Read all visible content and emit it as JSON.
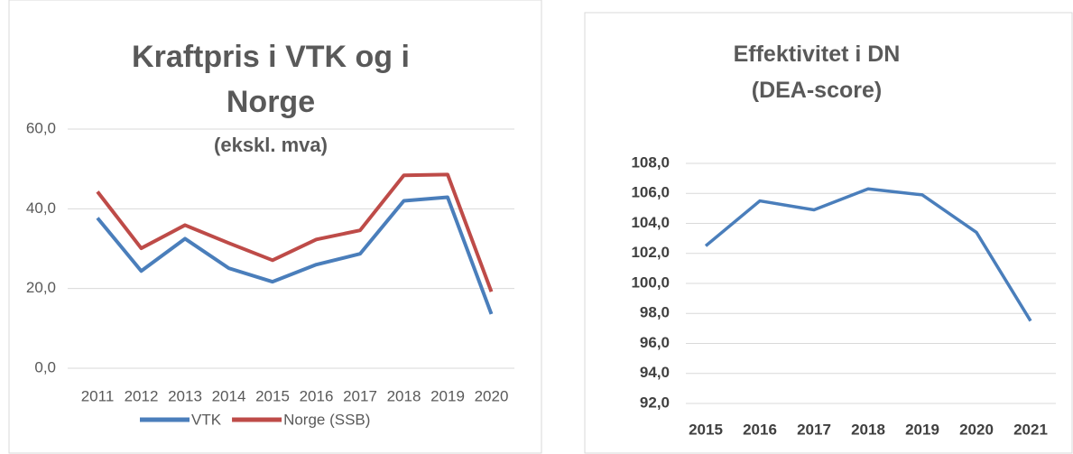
{
  "chart_data": [
    {
      "type": "line",
      "title": "Kraftpris i VTK og i Norge",
      "subtitle": "(ekskl. mva)",
      "categories": [
        "2011",
        "2012",
        "2013",
        "2014",
        "2015",
        "2016",
        "2017",
        "2018",
        "2019",
        "2020"
      ],
      "series": [
        {
          "name": "VTK",
          "color": "#4a7ebb",
          "values": [
            37.7,
            24.4,
            32.5,
            25.1,
            21.7,
            26.0,
            28.7,
            42.0,
            42.9,
            13.6
          ]
        },
        {
          "name": "Norge (SSB)",
          "color": "#be4b48",
          "values": [
            44.3,
            30.1,
            35.9,
            31.4,
            27.1,
            32.3,
            34.6,
            48.4,
            48.6,
            19.2
          ]
        }
      ],
      "ylim": [
        0,
        60
      ],
      "yticks": [
        {
          "value": 0,
          "label": "0,0"
        },
        {
          "value": 20,
          "label": "20,0"
        },
        {
          "value": 40,
          "label": "40,0"
        },
        {
          "value": 60,
          "label": "60,0"
        }
      ],
      "grid": true,
      "legend": "bottom"
    },
    {
      "type": "line",
      "title": "Effektivitet i DN",
      "subtitle": "(DEA-score)",
      "categories": [
        "2015",
        "2016",
        "2017",
        "2018",
        "2019",
        "2020",
        "2021"
      ],
      "values": [
        102.5,
        105.5,
        104.9,
        106.3,
        105.9,
        103.4,
        97.5
      ],
      "color": "#4a7ebb",
      "ylim": [
        92,
        108
      ],
      "yticks": [
        {
          "value": 92,
          "label": "92,0"
        },
        {
          "value": 94,
          "label": "94,0"
        },
        {
          "value": 96,
          "label": "96,0"
        },
        {
          "value": 98,
          "label": "98,0"
        },
        {
          "value": 100,
          "label": "100,0"
        },
        {
          "value": 102,
          "label": "102,0"
        },
        {
          "value": 104,
          "label": "104,0"
        },
        {
          "value": 106,
          "label": "106,0"
        },
        {
          "value": 108,
          "label": "108,0"
        }
      ],
      "grid": true
    }
  ]
}
